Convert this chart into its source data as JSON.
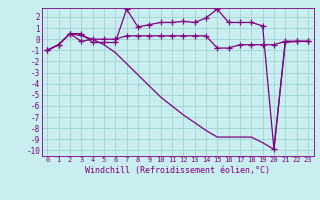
{
  "title": "",
  "xlabel": "Windchill (Refroidissement éolien,°C)",
  "background_color": "#c8eef0",
  "line_color": "#800080",
  "grid_color": "#99cccc",
  "spine_color": "#800080",
  "xlim": [
    -0.5,
    23.5
  ],
  "ylim": [
    -10.5,
    2.8
  ],
  "yticks": [
    2,
    1,
    0,
    -1,
    -2,
    -3,
    -4,
    -5,
    -6,
    -7,
    -8,
    -9,
    -10
  ],
  "xticks": [
    0,
    1,
    2,
    3,
    4,
    5,
    6,
    7,
    8,
    9,
    10,
    11,
    12,
    13,
    14,
    15,
    16,
    17,
    18,
    19,
    20,
    21,
    22,
    23
  ],
  "series1_x": [
    0,
    1,
    2,
    3,
    4,
    5,
    6,
    7,
    8,
    9,
    10,
    11,
    12,
    13,
    14,
    15,
    16,
    17,
    18,
    19,
    20,
    21,
    22,
    23
  ],
  "series1_y": [
    -1.0,
    -0.5,
    0.5,
    0.5,
    -0.3,
    -0.3,
    -0.3,
    2.7,
    1.1,
    1.3,
    1.5,
    1.5,
    1.6,
    1.5,
    1.9,
    2.7,
    1.5,
    1.5,
    1.5,
    1.2,
    -9.9,
    -0.3,
    -0.2,
    -0.2
  ],
  "series2_x": [
    0,
    1,
    2,
    3,
    4,
    5,
    6,
    7,
    8,
    9,
    10,
    11,
    12,
    13,
    14,
    15,
    16,
    17,
    18,
    19,
    20,
    21,
    22,
    23
  ],
  "series2_y": [
    -1.0,
    -0.5,
    0.5,
    -0.2,
    0.0,
    0.0,
    0.0,
    0.3,
    0.3,
    0.3,
    0.3,
    0.3,
    0.3,
    0.3,
    0.3,
    -0.8,
    -0.8,
    -0.5,
    -0.5,
    -0.5,
    -0.5,
    -0.2,
    -0.2,
    -0.2
  ],
  "series3_x": [
    0,
    1,
    2,
    3,
    4,
    5,
    6,
    7,
    8,
    9,
    10,
    11,
    12,
    13,
    14,
    15,
    16,
    17,
    18,
    19,
    20,
    21,
    22,
    23
  ],
  "series3_y": [
    -1.0,
    -0.5,
    0.5,
    0.3,
    0.0,
    -0.5,
    -1.2,
    -2.2,
    -3.2,
    -4.2,
    -5.2,
    -6.0,
    -6.8,
    -7.5,
    -8.2,
    -8.8,
    -8.8,
    -8.8,
    -8.8,
    -9.3,
    -9.9,
    -0.2,
    -0.2,
    -0.2
  ]
}
